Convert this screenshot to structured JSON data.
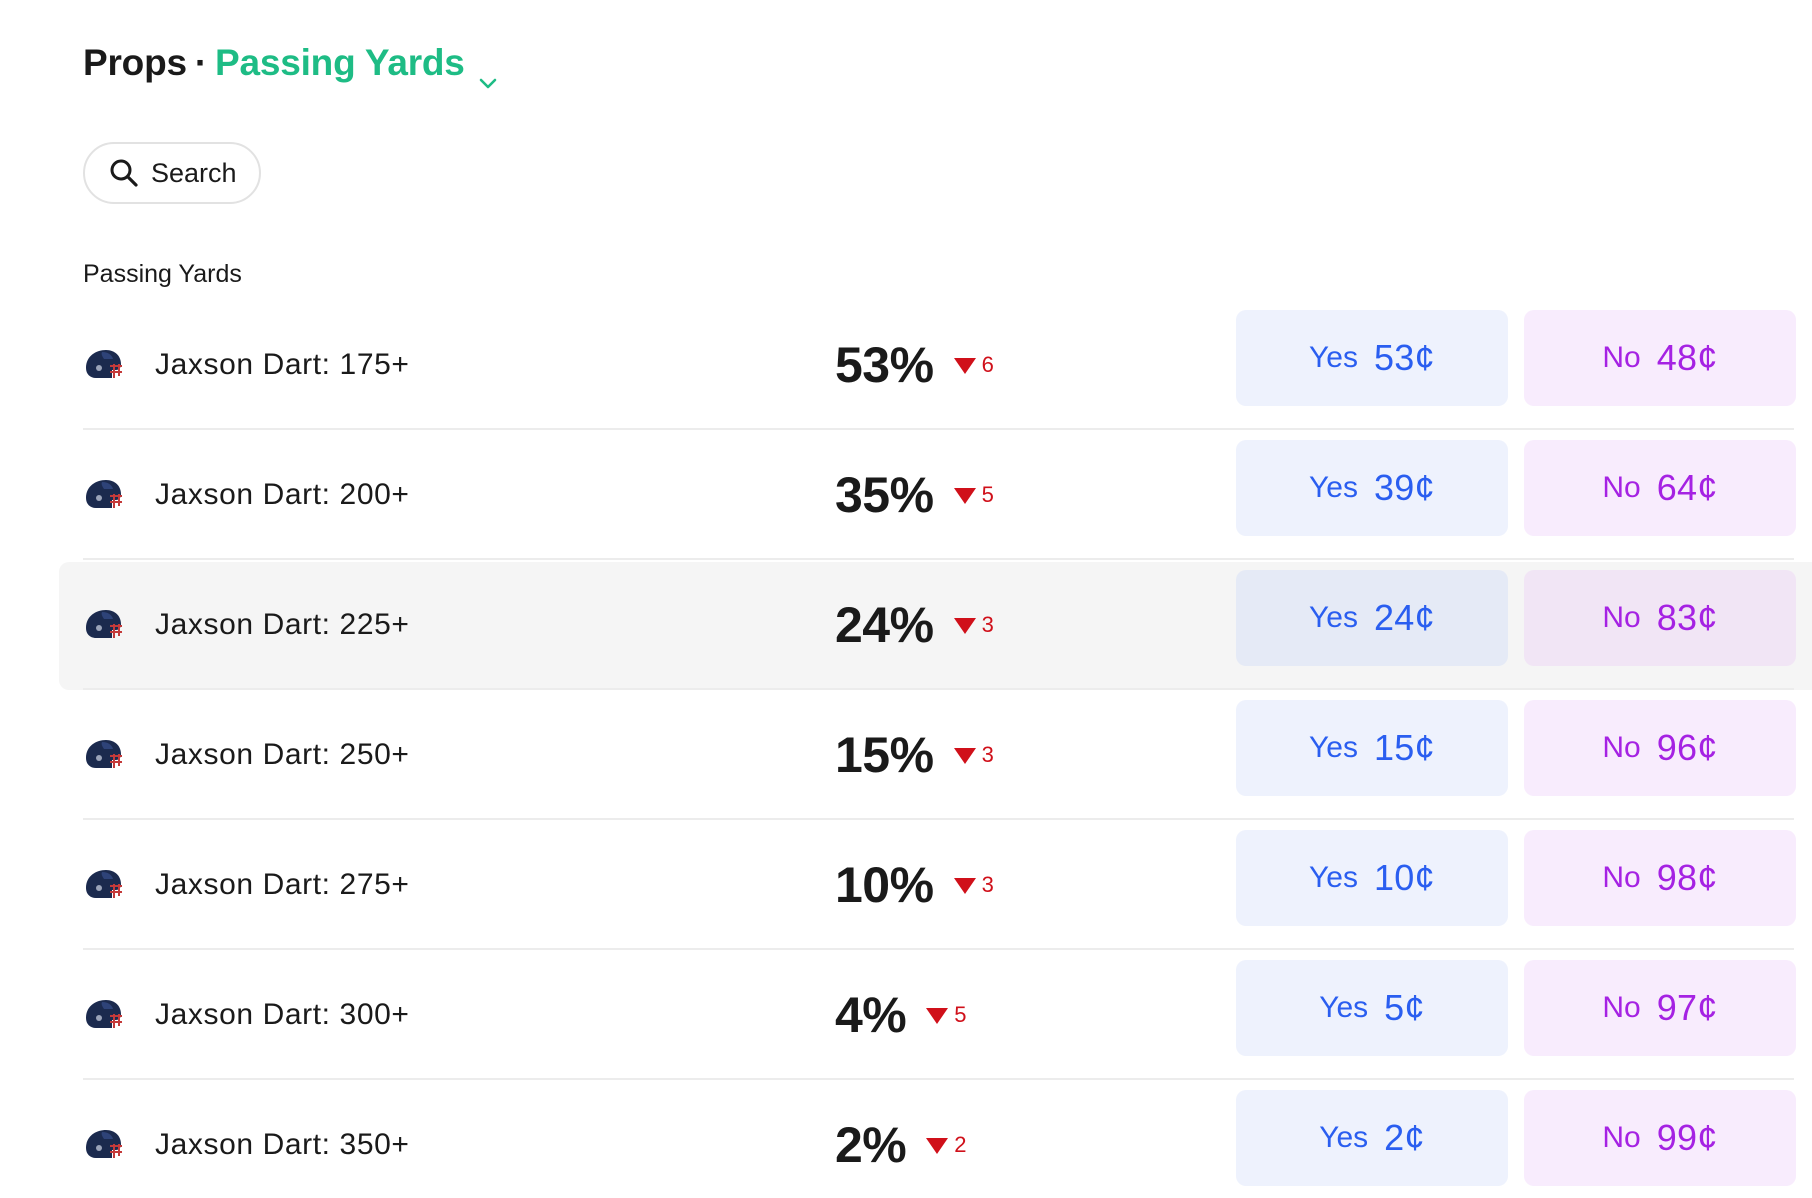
{
  "header": {
    "props_label": "Props",
    "separator": "·",
    "market_label": "Passing Yards",
    "chevron_icon": "chevron-down-icon",
    "market_color": "#1ebc85"
  },
  "search": {
    "label": "Search",
    "icon": "search-icon"
  },
  "section": {
    "label": "Passing Yards"
  },
  "colors": {
    "down": "#d0101a",
    "yes_text": "#2a5ef0",
    "yes_bg": "#eef2fd",
    "no_text": "#a522e3",
    "no_bg": "#f8ecfd"
  },
  "rows": [
    {
      "name": "Jaxson Dart: 175+",
      "pct": "53%",
      "delta": "6",
      "yes_label": "Yes",
      "yes_price": "53¢",
      "no_label": "No",
      "no_price": "48¢",
      "trend": "down"
    },
    {
      "name": "Jaxson Dart: 200+",
      "pct": "35%",
      "delta": "5",
      "yes_label": "Yes",
      "yes_price": "39¢",
      "no_label": "No",
      "no_price": "64¢",
      "trend": "down"
    },
    {
      "name": "Jaxson Dart: 225+",
      "pct": "24%",
      "delta": "3",
      "yes_label": "Yes",
      "yes_price": "24¢",
      "no_label": "No",
      "no_price": "83¢",
      "trend": "down",
      "hovered": true
    },
    {
      "name": "Jaxson Dart: 250+",
      "pct": "15%",
      "delta": "3",
      "yes_label": "Yes",
      "yes_price": "15¢",
      "no_label": "No",
      "no_price": "96¢",
      "trend": "down"
    },
    {
      "name": "Jaxson Dart: 275+",
      "pct": "10%",
      "delta": "3",
      "yes_label": "Yes",
      "yes_price": "10¢",
      "no_label": "No",
      "no_price": "98¢",
      "trend": "down"
    },
    {
      "name": "Jaxson Dart: 300+",
      "pct": "4%",
      "delta": "5",
      "yes_label": "Yes",
      "yes_price": "5¢",
      "no_label": "No",
      "no_price": "97¢",
      "trend": "down"
    },
    {
      "name": "Jaxson Dart: 350+",
      "pct": "2%",
      "delta": "2",
      "yes_label": "Yes",
      "yes_price": "2¢",
      "no_label": "No",
      "no_price": "99¢",
      "trend": "down"
    }
  ]
}
